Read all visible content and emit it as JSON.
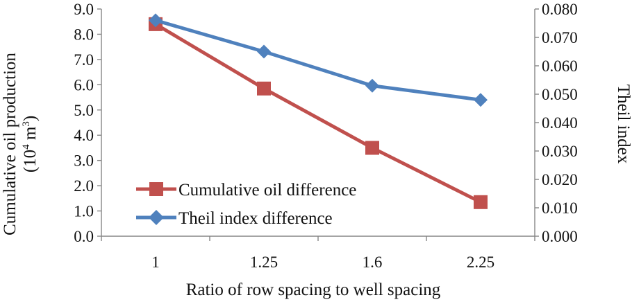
{
  "chart_data": {
    "type": "line",
    "x_categories": [
      "1",
      "1.25",
      "1.6",
      "2.25"
    ],
    "xlabel": "Ratio of row spacing to well spacing",
    "ylabel_left_line1": "Cumulative oil production",
    "ylabel_left_line2_open": "(10",
    "ylabel_left_sup1": "4",
    "ylabel_left_line2_mid": " m",
    "ylabel_left_sup2": "3",
    "ylabel_left_line2_close": ")",
    "ylabel_right": "Theil index",
    "y_left": {
      "min": 0,
      "max": 9,
      "ticks": [
        "0.0",
        "1.0",
        "2.0",
        "3.0",
        "4.0",
        "5.0",
        "6.0",
        "7.0",
        "8.0",
        "9.0"
      ]
    },
    "y_right": {
      "min": 0,
      "max": 0.08,
      "ticks": [
        "0.000",
        "0.010",
        "0.020",
        "0.030",
        "0.040",
        "0.050",
        "0.060",
        "0.070",
        "0.080"
      ]
    },
    "series": [
      {
        "name": "Cumulative oil difference",
        "axis": "left",
        "color": "#c0504d",
        "marker": "square",
        "values": [
          8.4,
          5.85,
          3.5,
          1.35
        ]
      },
      {
        "name": "Theil index difference",
        "axis": "right",
        "color": "#4f81bd",
        "marker": "diamond",
        "values": [
          0.076,
          0.065,
          0.053,
          0.048
        ]
      }
    ]
  }
}
